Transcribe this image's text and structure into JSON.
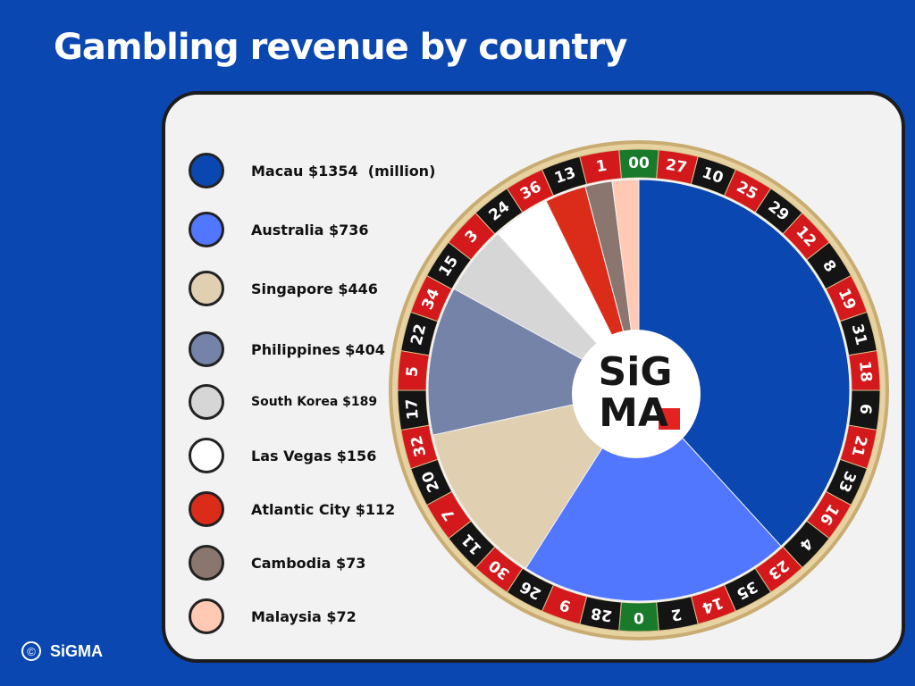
{
  "title": "Gambling revenue by country",
  "footer": {
    "copyright_symbol": "©",
    "brand": "SiGMA"
  },
  "logo": {
    "line1": "SiG",
    "line2": "MA"
  },
  "chart_data": {
    "type": "pie",
    "title": "Gambling revenue by country",
    "unit_note": "(million)",
    "slices": [
      {
        "name": "Macau",
        "value": 1354,
        "label": "Macau $1354  (million)",
        "color": "#0a47b1"
      },
      {
        "name": "Australia",
        "value": 736,
        "label": "Australia $736",
        "color": "#5176ff"
      },
      {
        "name": "Singapore",
        "value": 446,
        "label": "Singapore $446",
        "color": "#e0cfb1"
      },
      {
        "name": "Philippines",
        "value": 404,
        "label": "Philippines $404",
        "color": "#7583a8"
      },
      {
        "name": "South Korea",
        "value": 189,
        "label": "South Korea $189",
        "color": "#d6d6d6"
      },
      {
        "name": "Las Vegas",
        "value": 156,
        "label": "Las Vegas $156",
        "color": "#ffffff"
      },
      {
        "name": "Atlantic City",
        "value": 112,
        "label": "Atlantic City $112",
        "color": "#db2c1a"
      },
      {
        "name": "Cambodia",
        "value": 73,
        "label": "Cambodia $73",
        "color": "#8a766e"
      },
      {
        "name": "Malaysia",
        "value": 72,
        "label": "Malaysia $72",
        "color": "#ffc9b4"
      }
    ],
    "wheel_numbers": [
      "00",
      "27",
      "10",
      "25",
      "29",
      "12",
      "8",
      "19",
      "31",
      "18",
      "6",
      "21",
      "33",
      "16",
      "4",
      "23",
      "35",
      "14",
      "2",
      "0",
      "28",
      "9",
      "26",
      "30",
      "11",
      "7",
      "20",
      "32",
      "17",
      "5",
      "22",
      "34",
      "15",
      "3",
      "24",
      "36",
      "13",
      "1"
    ],
    "wheel_colors": [
      "green",
      "red",
      "black",
      "red",
      "black",
      "red",
      "black",
      "red",
      "black",
      "red",
      "black",
      "red",
      "black",
      "red",
      "black",
      "red",
      "black",
      "red",
      "black",
      "green",
      "black",
      "red",
      "black",
      "red",
      "black",
      "red",
      "black",
      "red",
      "black",
      "red",
      "black",
      "red",
      "black",
      "red",
      "black",
      "red",
      "black",
      "red"
    ],
    "legend_placement": "left"
  }
}
